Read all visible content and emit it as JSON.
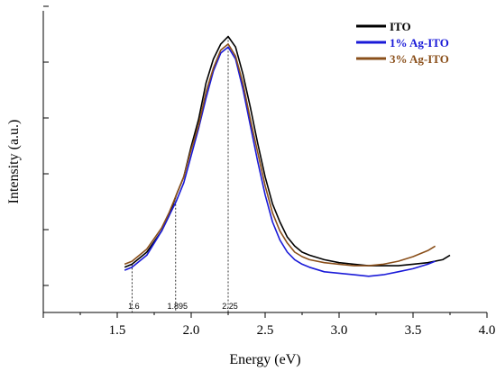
{
  "chart_data": {
    "type": "line",
    "title": "",
    "xlabel": "Energy (eV)",
    "ylabel": "Intensity (a.u.)",
    "xlim": [
      1.0,
      4.0
    ],
    "ylim": [
      0,
      1.0
    ],
    "x_ticks": [
      1.5,
      2.0,
      2.5,
      3.0,
      3.5,
      4.0
    ],
    "x_tick_labels": [
      "1.5",
      "2.0",
      "2.5",
      "3.0",
      "3.5",
      "4.0"
    ],
    "y_tick_count": 6,
    "grid": false,
    "legend_position": "top-right",
    "annotations": [
      {
        "x": 1.6,
        "label": "1.6"
      },
      {
        "x": 1.895,
        "label": "1.895"
      },
      {
        "x": 2.25,
        "label": "2.25"
      }
    ],
    "series": [
      {
        "name": "ITO",
        "color": "#000000",
        "points": [
          [
            1.55,
            0.15
          ],
          [
            1.6,
            0.16
          ],
          [
            1.7,
            0.2
          ],
          [
            1.8,
            0.27
          ],
          [
            1.85,
            0.32
          ],
          [
            1.9,
            0.39
          ],
          [
            1.95,
            0.45
          ],
          [
            2.0,
            0.55
          ],
          [
            2.05,
            0.64
          ],
          [
            2.1,
            0.76
          ],
          [
            2.15,
            0.84
          ],
          [
            2.2,
            0.89
          ],
          [
            2.25,
            0.915
          ],
          [
            2.3,
            0.88
          ],
          [
            2.35,
            0.79
          ],
          [
            2.4,
            0.68
          ],
          [
            2.45,
            0.56
          ],
          [
            2.5,
            0.45
          ],
          [
            2.55,
            0.36
          ],
          [
            2.6,
            0.3
          ],
          [
            2.65,
            0.25
          ],
          [
            2.7,
            0.22
          ],
          [
            2.75,
            0.2
          ],
          [
            2.8,
            0.19
          ],
          [
            2.9,
            0.175
          ],
          [
            3.0,
            0.165
          ],
          [
            3.1,
            0.16
          ],
          [
            3.2,
            0.155
          ],
          [
            3.3,
            0.155
          ],
          [
            3.4,
            0.155
          ],
          [
            3.5,
            0.16
          ],
          [
            3.6,
            0.165
          ],
          [
            3.7,
            0.175
          ],
          [
            3.75,
            0.19
          ]
        ]
      },
      {
        "name": "1% Ag-ITO",
        "color": "#1a1ad8",
        "points": [
          [
            1.55,
            0.14
          ],
          [
            1.6,
            0.15
          ],
          [
            1.7,
            0.19
          ],
          [
            1.8,
            0.27
          ],
          [
            1.85,
            0.32
          ],
          [
            1.9,
            0.37
          ],
          [
            1.95,
            0.43
          ],
          [
            2.0,
            0.52
          ],
          [
            2.05,
            0.61
          ],
          [
            2.1,
            0.71
          ],
          [
            2.15,
            0.8
          ],
          [
            2.2,
            0.86
          ],
          [
            2.25,
            0.88
          ],
          [
            2.3,
            0.84
          ],
          [
            2.35,
            0.74
          ],
          [
            2.4,
            0.62
          ],
          [
            2.45,
            0.5
          ],
          [
            2.5,
            0.39
          ],
          [
            2.55,
            0.3
          ],
          [
            2.6,
            0.24
          ],
          [
            2.65,
            0.2
          ],
          [
            2.7,
            0.175
          ],
          [
            2.75,
            0.16
          ],
          [
            2.8,
            0.15
          ],
          [
            2.9,
            0.135
          ],
          [
            3.0,
            0.13
          ],
          [
            3.1,
            0.125
          ],
          [
            3.2,
            0.12
          ],
          [
            3.3,
            0.125
          ],
          [
            3.4,
            0.135
          ],
          [
            3.5,
            0.145
          ],
          [
            3.6,
            0.16
          ],
          [
            3.65,
            0.17
          ]
        ]
      },
      {
        "name": "3% Ag-ITO",
        "color": "#8a4f1a",
        "points": [
          [
            1.55,
            0.16
          ],
          [
            1.6,
            0.17
          ],
          [
            1.7,
            0.21
          ],
          [
            1.8,
            0.28
          ],
          [
            1.85,
            0.33
          ],
          [
            1.9,
            0.39
          ],
          [
            1.95,
            0.45
          ],
          [
            2.0,
            0.54
          ],
          [
            2.05,
            0.62
          ],
          [
            2.1,
            0.73
          ],
          [
            2.15,
            0.81
          ],
          [
            2.2,
            0.87
          ],
          [
            2.25,
            0.89
          ],
          [
            2.3,
            0.85
          ],
          [
            2.35,
            0.76
          ],
          [
            2.4,
            0.64
          ],
          [
            2.45,
            0.53
          ],
          [
            2.5,
            0.42
          ],
          [
            2.55,
            0.33
          ],
          [
            2.6,
            0.27
          ],
          [
            2.65,
            0.23
          ],
          [
            2.7,
            0.2
          ],
          [
            2.75,
            0.185
          ],
          [
            2.8,
            0.175
          ],
          [
            2.9,
            0.165
          ],
          [
            3.0,
            0.16
          ],
          [
            3.1,
            0.155
          ],
          [
            3.2,
            0.155
          ],
          [
            3.3,
            0.16
          ],
          [
            3.4,
            0.17
          ],
          [
            3.5,
            0.185
          ],
          [
            3.6,
            0.205
          ],
          [
            3.65,
            0.22
          ]
        ]
      }
    ]
  }
}
